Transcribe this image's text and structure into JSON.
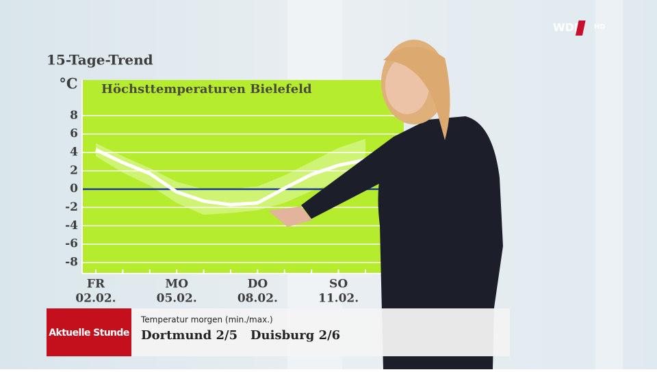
{
  "header": {
    "title": "15-Tage-Trend",
    "logo": "WDR",
    "logo_suffix": "HD"
  },
  "chart_data": {
    "type": "line",
    "title": "Höchsttemperaturen Bielefeld",
    "y_label": "°C",
    "categories": [
      "02.02.",
      null,
      null,
      "05.02.",
      null,
      null,
      "08.02.",
      null,
      null,
      "11.02.",
      null
    ],
    "category_weekdays": [
      "FR",
      null,
      null,
      "MO",
      null,
      null,
      "DO",
      null,
      null,
      "SO",
      null
    ],
    "values": [
      4.3,
      2.9,
      1.7,
      -0.3,
      -1.3,
      -1.7,
      -1.5,
      0.1,
      1.6,
      2.6,
      3.2
    ],
    "band_low": [
      3.6,
      1.8,
      0.4,
      -1.5,
      -2.8,
      -2.6,
      -2.3,
      -1.5,
      -0.2,
      0.8,
      1.5
    ],
    "band_high": [
      5.0,
      3.6,
      2.3,
      0.8,
      0.0,
      0.0,
      0.3,
      1.5,
      3.0,
      4.5,
      5.5
    ],
    "color": "#ffffff",
    "band_color": "#d8f58a",
    "background": "#b5ec2d",
    "zero_line_color": "#1c3d9c",
    "ylim": [
      -9.2,
      11.9
    ],
    "yticks": [
      -8,
      -6,
      -4,
      -2,
      0,
      2,
      4,
      6,
      8
    ],
    "grid": true
  },
  "lower_third": {
    "show": "Aktuelle Stunde",
    "caption": "Temperatur morgen (min./max.)",
    "text": "Dortmund 2/5   Duisburg 2/6"
  }
}
